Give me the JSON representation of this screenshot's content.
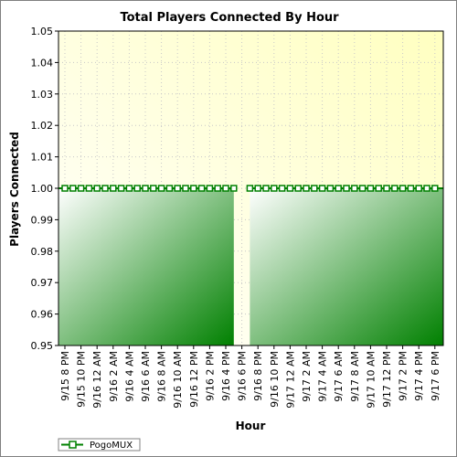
{
  "chart_data": {
    "type": "area",
    "title": "Total Players Connected By Hour",
    "xlabel": "Hour",
    "ylabel": "Players Connected",
    "ylim": [
      0.95,
      1.05
    ],
    "yticks": [
      0.95,
      0.96,
      0.97,
      0.98,
      0.99,
      1.0,
      1.01,
      1.02,
      1.03,
      1.04,
      1.05
    ],
    "xtick_labels": [
      "9/15 8 PM",
      "9/15 10 PM",
      "9/16 12 AM",
      "9/16 2 AM",
      "9/16 4 AM",
      "9/16 6 AM",
      "9/16 8 AM",
      "9/16 10 AM",
      "9/16 12 PM",
      "9/16 2 PM",
      "9/16 4 PM",
      "9/16 6 PM",
      "9/16 8 PM",
      "9/16 10 PM",
      "9/17 12 AM",
      "9/17 2 AM",
      "9/17 4 AM",
      "9/17 6 AM",
      "9/17 8 AM",
      "9/17 10 AM",
      "9/17 12 PM",
      "9/17 2 PM",
      "9/17 4 PM",
      "9/17 6 PM"
    ],
    "grid": true,
    "legend_position": "bottom-left",
    "series": [
      {
        "name": "PogoMUX",
        "color": "#008000",
        "segments": [
          [
            "9/15 7 PM",
            "9/15 8 PM",
            "9/15 9 PM",
            "9/15 10 PM",
            "9/15 11 PM",
            "9/16 12 AM",
            "9/16 1 AM",
            "9/16 2 AM",
            "9/16 3 AM",
            "9/16 4 AM",
            "9/16 5 AM",
            "9/16 6 AM",
            "9/16 7 AM",
            "9/16 8 AM",
            "9/16 9 AM",
            "9/16 10 AM",
            "9/16 11 AM",
            "9/16 12 PM",
            "9/16 1 PM",
            "9/16 2 PM",
            "9/16 3 PM",
            "9/16 4 PM",
            "9/16 5 PM"
          ],
          [
            "9/16 7 PM",
            "9/16 8 PM",
            "9/16 9 PM",
            "9/16 10 PM",
            "9/16 11 PM",
            "9/17 12 AM",
            "9/17 1 AM",
            "9/17 2 AM",
            "9/17 3 AM",
            "9/17 4 AM",
            "9/17 5 AM",
            "9/17 6 AM",
            "9/17 7 AM",
            "9/17 8 AM",
            "9/17 9 AM",
            "9/17 10 AM",
            "9/17 11 AM",
            "9/17 12 PM",
            "9/17 1 PM",
            "9/17 2 PM",
            "9/17 3 PM",
            "9/17 4 PM",
            "9/17 5 PM",
            "9/17 6 PM",
            "9/17 7 PM"
          ]
        ],
        "value": 1.0
      }
    ]
  }
}
